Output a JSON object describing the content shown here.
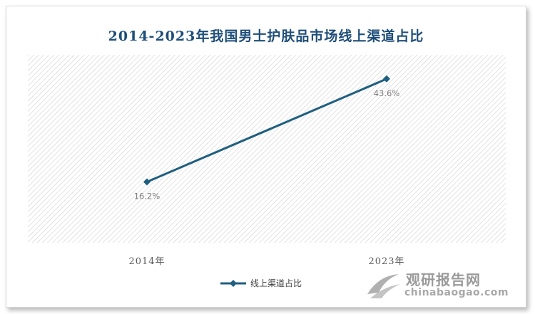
{
  "chart_data": {
    "type": "line",
    "title": "2014-2023年我国男士护肤品市场线上渠道占比",
    "categories": [
      "2014年",
      "2023年"
    ],
    "series": [
      {
        "name": "线上渠道占比",
        "values": [
          16.2,
          43.6
        ],
        "labels": [
          "16.2%",
          "43.6%"
        ]
      }
    ],
    "ylim": [
      0,
      50
    ],
    "grid": false,
    "legend_position": "bottom",
    "colors": {
      "line": "#1f5f80",
      "title": "#1f4e79",
      "plot_pattern": "#d0d0d0"
    }
  },
  "watermark": {
    "cn": "观研报告网",
    "en": "chinabaogao.com"
  }
}
